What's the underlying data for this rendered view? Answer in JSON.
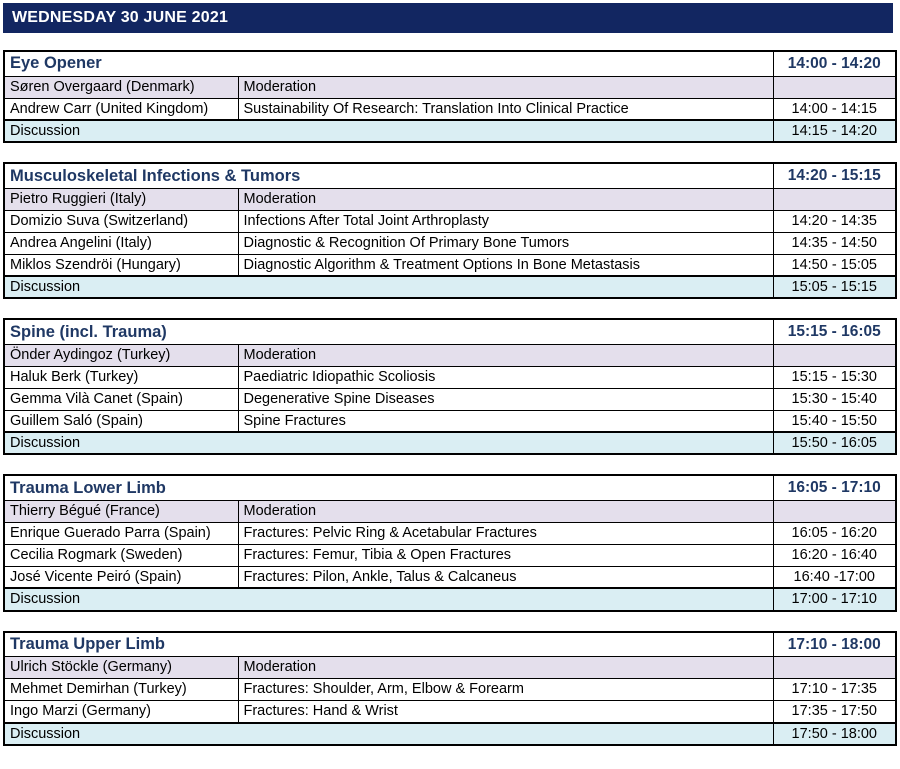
{
  "banner": {
    "title": "WEDNESDAY 30 JUNE 2021"
  },
  "labels": {
    "moderation": "Moderation",
    "discussion": "Discussion"
  },
  "colors": {
    "banner_bg": "#122661",
    "title_text": "#1F3864",
    "moderation_bg": "#E4DFEC",
    "discussion_bg": "#DAEEF3",
    "border": "#000000"
  },
  "sections": [
    {
      "title": "Eye Opener",
      "time": "14:00 - 14:20",
      "moderator": "Søren Overgaard (Denmark)",
      "talks": [
        {
          "speaker": "Andrew Carr (United Kingdom)",
          "title": "Sustainability Of Research: Translation Into Clinical Practice",
          "time": "14:00 - 14:15"
        }
      ],
      "discussion_time": "14:15 - 14:20"
    },
    {
      "title": "Musculoskeletal Infections & Tumors",
      "time": "14:20 - 15:15",
      "moderator": "Pietro Ruggieri (Italy)",
      "talks": [
        {
          "speaker": "Domizio Suva (Switzerland)",
          "title": "Infections After Total Joint Arthroplasty",
          "time": "14:20 - 14:35"
        },
        {
          "speaker": "Andrea Angelini (Italy)",
          "title": "Diagnostic & Recognition Of Primary Bone Tumors",
          "time": "14:35 - 14:50"
        },
        {
          "speaker": "Miklos Szendröi (Hungary)",
          "title": "Diagnostic Algorithm & Treatment Options In Bone Metastasis",
          "time": "14:50 - 15:05"
        }
      ],
      "discussion_time": "15:05 - 15:15"
    },
    {
      "title": "Spine (incl. Trauma)",
      "time": "15:15 - 16:05",
      "moderator": "Önder Aydingoz (Turkey)",
      "talks": [
        {
          "speaker": "Haluk Berk (Turkey)",
          "title": "Paediatric Idiopathic Scoliosis",
          "time": "15:15 - 15:30"
        },
        {
          "speaker": "Gemma Vilà Canet (Spain)",
          "title": "Degenerative Spine Diseases",
          "time": "15:30 - 15:40"
        },
        {
          "speaker": "Guillem Saló (Spain)",
          "title": "Spine Fractures",
          "time": "15:40 - 15:50"
        }
      ],
      "discussion_time": "15:50 - 16:05"
    },
    {
      "title": "Trauma Lower Limb",
      "time": "16:05 - 17:10",
      "moderator": "Thierry Bégué (France)",
      "talks": [
        {
          "speaker": "Enrique Guerado Parra (Spain)",
          "title": "Fractures: Pelvic Ring & Acetabular Fractures",
          "time": "16:05 - 16:20"
        },
        {
          "speaker": "Cecilia Rogmark (Sweden)",
          "title": "Fractures: Femur, Tibia & Open Fractures",
          "time": "16:20 - 16:40"
        },
        {
          "speaker": "José Vicente Peiró (Spain)",
          "title": "Fractures: Pilon, Ankle, Talus & Calcaneus",
          "time": "16:40 -17:00"
        }
      ],
      "discussion_time": "17:00 - 17:10"
    },
    {
      "title": "Trauma Upper Limb",
      "time": "17:10 - 18:00",
      "moderator": "Ulrich Stöckle (Germany)",
      "talks": [
        {
          "speaker": "Mehmet Demirhan (Turkey)",
          "title": "Fractures: Shoulder, Arm, Elbow & Forearm",
          "time": "17:10 - 17:35"
        },
        {
          "speaker": "Ingo Marzi (Germany)",
          "title": "Fractures: Hand & Wrist",
          "time": "17:35 - 17:50"
        }
      ],
      "discussion_time": "17:50 - 18:00"
    }
  ]
}
